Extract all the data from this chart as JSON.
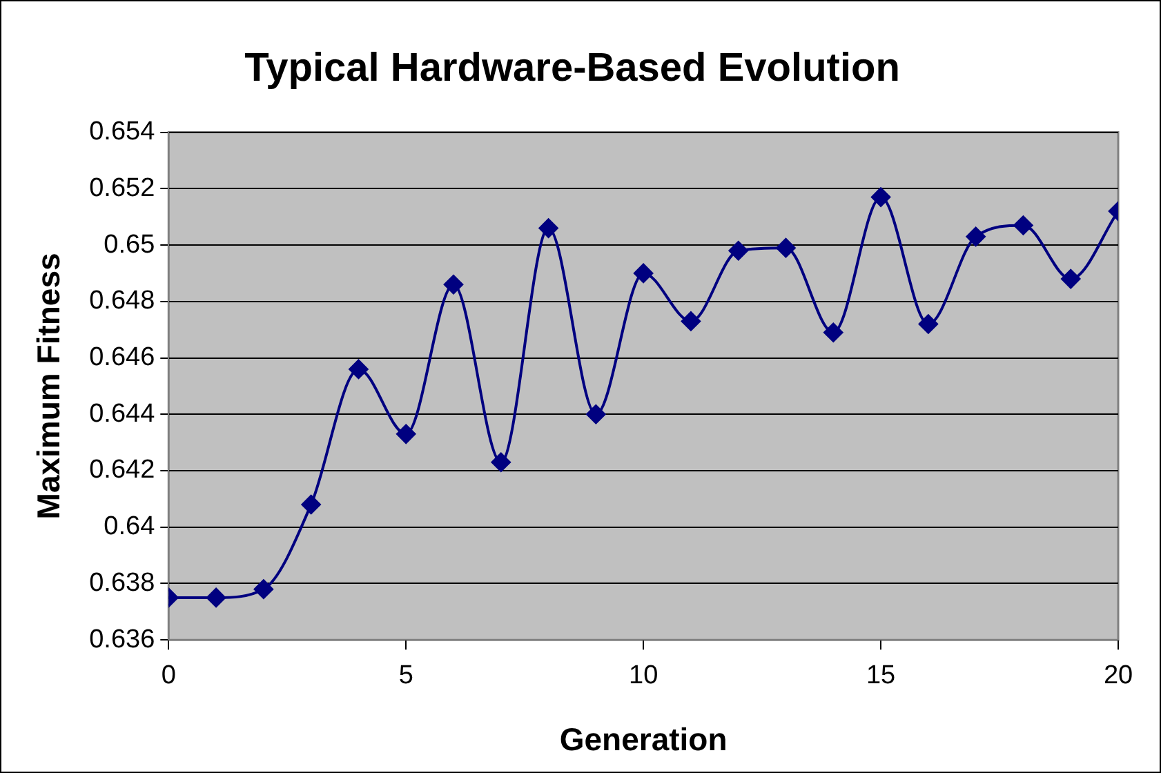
{
  "chart_data": {
    "type": "line",
    "title": "Typical Hardware-Based Evolution",
    "xlabel": "Generation",
    "ylabel": "Maximum Fitness",
    "x": [
      0,
      1,
      2,
      3,
      4,
      5,
      6,
      7,
      8,
      9,
      10,
      11,
      12,
      13,
      14,
      15,
      16,
      17,
      18,
      19,
      20
    ],
    "series": [
      {
        "color": "#000080",
        "values": [
          0.6375,
          0.6375,
          0.6378,
          0.6408,
          0.6456,
          0.6433,
          0.6486,
          0.6423,
          0.6506,
          0.644,
          0.649,
          0.6473,
          0.6498,
          0.6499,
          0.6469,
          0.6517,
          0.6472,
          0.6503,
          0.6507,
          0.6488,
          0.6512
        ]
      }
    ],
    "xlim": [
      0,
      20
    ],
    "xticks": [
      0,
      5,
      10,
      15,
      20
    ],
    "ylim": [
      0.636,
      0.654
    ],
    "yticks": [
      0.636,
      0.638,
      0.64,
      0.642,
      0.644,
      0.646,
      0.648,
      0.65,
      0.652,
      0.654
    ],
    "grid": "y",
    "legend": false,
    "marker": "diamond",
    "line_style": "solid"
  }
}
